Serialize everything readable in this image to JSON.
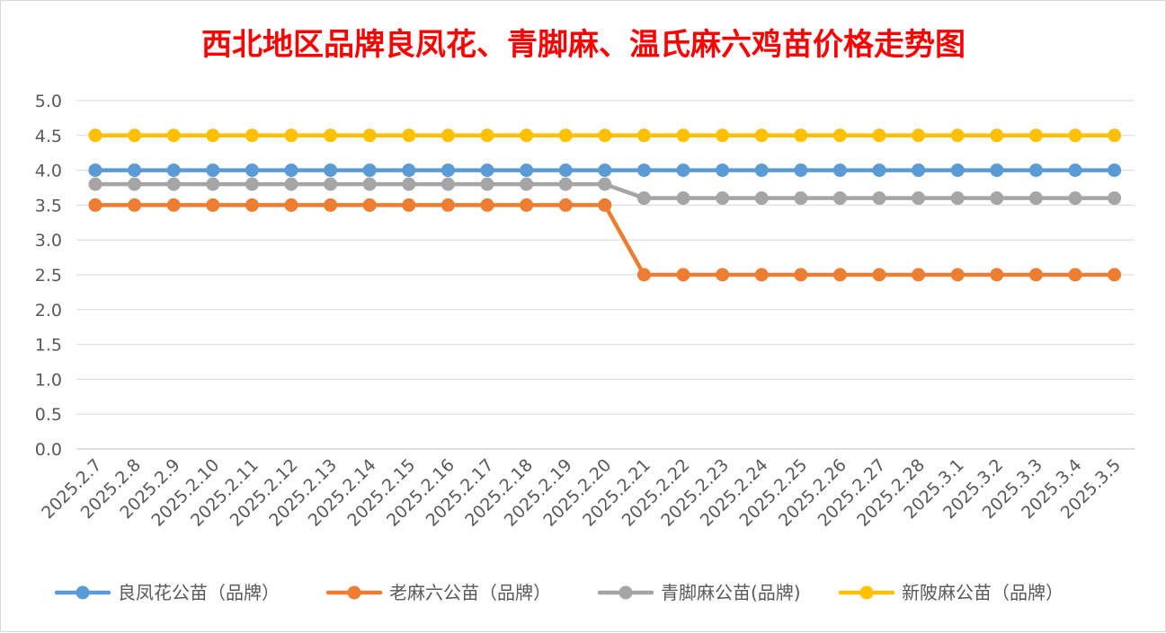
{
  "chart_data": {
    "type": "line",
    "title": "西北地区品牌良凤花、青脚麻、温氏麻六鸡苗价格走势图",
    "title_color": "#ff0000",
    "xlabel": "",
    "ylabel": "",
    "ylim": [
      0,
      5
    ],
    "y_ticks": [
      "0.0",
      "0.5",
      "1.0",
      "1.5",
      "2.0",
      "2.5",
      "3.0",
      "3.5",
      "4.0",
      "4.5",
      "5.0"
    ],
    "grid": true,
    "legend_position": "bottom",
    "categories": [
      "2025.2.7",
      "2025.2.8",
      "2025.2.9",
      "2025.2.10",
      "2025.2.11",
      "2025.2.12",
      "2025.2.13",
      "2025.2.14",
      "2025.2.15",
      "2025.2.16",
      "2025.2.17",
      "2025.2.18",
      "2025.2.19",
      "2025.2.20",
      "2025.2.21",
      "2025.2.22",
      "2025.2.23",
      "2025.2.24",
      "2025.2.25",
      "2025.2.26",
      "2025.2.27",
      "2025.2.28",
      "2025.3.1",
      "2025.3.2",
      "2025.3.3",
      "2025.3.4",
      "2025.3.5"
    ],
    "series": [
      {
        "name": "良凤花公苗（品牌）",
        "color": "#5b9bd5",
        "values": [
          4.0,
          4.0,
          4.0,
          4.0,
          4.0,
          4.0,
          4.0,
          4.0,
          4.0,
          4.0,
          4.0,
          4.0,
          4.0,
          4.0,
          4.0,
          4.0,
          4.0,
          4.0,
          4.0,
          4.0,
          4.0,
          4.0,
          4.0,
          4.0,
          4.0,
          4.0,
          4.0
        ]
      },
      {
        "name": "老麻六公苗（品牌）",
        "color": "#ed7d31",
        "values": [
          3.5,
          3.5,
          3.5,
          3.5,
          3.5,
          3.5,
          3.5,
          3.5,
          3.5,
          3.5,
          3.5,
          3.5,
          3.5,
          3.5,
          2.5,
          2.5,
          2.5,
          2.5,
          2.5,
          2.5,
          2.5,
          2.5,
          2.5,
          2.5,
          2.5,
          2.5,
          2.5
        ]
      },
      {
        "name": "青脚麻公苗(品牌)",
        "color": "#a5a5a5",
        "values": [
          3.8,
          3.8,
          3.8,
          3.8,
          3.8,
          3.8,
          3.8,
          3.8,
          3.8,
          3.8,
          3.8,
          3.8,
          3.8,
          3.8,
          3.6,
          3.6,
          3.6,
          3.6,
          3.6,
          3.6,
          3.6,
          3.6,
          3.6,
          3.6,
          3.6,
          3.6,
          3.6
        ]
      },
      {
        "name": "新陂麻公苗（品牌）",
        "color": "#ffc000",
        "values": [
          4.5,
          4.5,
          4.5,
          4.5,
          4.5,
          4.5,
          4.5,
          4.5,
          4.5,
          4.5,
          4.5,
          4.5,
          4.5,
          4.5,
          4.5,
          4.5,
          4.5,
          4.5,
          4.5,
          4.5,
          4.5,
          4.5,
          4.5,
          4.5,
          4.5,
          4.5,
          4.5
        ]
      }
    ]
  }
}
